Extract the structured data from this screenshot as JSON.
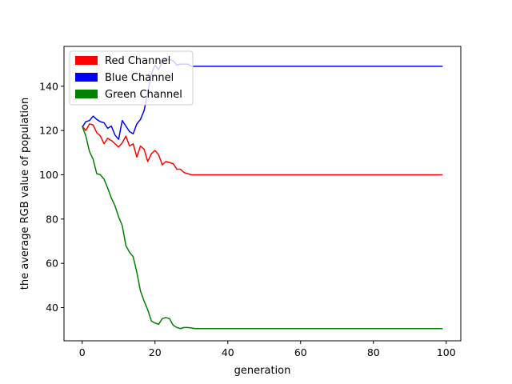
{
  "chart_data": {
    "type": "line",
    "title": "",
    "xlabel": "generation",
    "ylabel": "the average RGB value of population",
    "xlim": [
      -5,
      104
    ],
    "ylim": [
      25,
      158
    ],
    "xticks": [
      0,
      20,
      40,
      60,
      80,
      100
    ],
    "yticks": [
      40,
      60,
      80,
      100,
      120,
      140
    ],
    "grid": false,
    "legend": {
      "placement": "top-left"
    },
    "series": [
      {
        "name": "Red Channel",
        "color": "#ff0000",
        "x": [
          0,
          1,
          2,
          3,
          4,
          5,
          6,
          7,
          8,
          9,
          10,
          11,
          12,
          13,
          14,
          15,
          16,
          17,
          18,
          19,
          20,
          21,
          22,
          23,
          24,
          25,
          26,
          27,
          28,
          29,
          30,
          31,
          40,
          50,
          60,
          70,
          80,
          90,
          99
        ],
        "y": [
          122,
          120,
          123,
          122.5,
          119,
          117.5,
          114,
          116.5,
          115.5,
          114,
          112.5,
          114.5,
          117.5,
          113,
          114,
          108,
          113,
          111.5,
          106,
          109.5,
          111,
          109,
          104.5,
          106,
          105.5,
          105,
          102.5,
          102.5,
          101,
          100.5,
          100,
          100,
          100,
          100,
          100,
          100,
          100,
          100,
          100
        ]
      },
      {
        "name": "Blue Channel",
        "color": "#0000ff",
        "x": [
          0,
          1,
          2,
          3,
          4,
          5,
          6,
          7,
          8,
          9,
          10,
          11,
          12,
          13,
          14,
          15,
          16,
          17,
          18,
          19,
          20,
          21,
          22,
          23,
          24,
          25,
          26,
          27,
          28,
          29,
          30,
          31,
          40,
          50,
          60,
          70,
          80,
          90,
          99
        ],
        "y": [
          121.5,
          124,
          124.5,
          126.5,
          125,
          124,
          123.5,
          121,
          122,
          118,
          116,
          124.5,
          122,
          119.5,
          118.5,
          123,
          125,
          129,
          137,
          145.5,
          149.5,
          147.5,
          151,
          152.5,
          152,
          151.5,
          149.5,
          150,
          150,
          150,
          149,
          149,
          149,
          149,
          149,
          149,
          149,
          149,
          149
        ]
      },
      {
        "name": "Green Channel",
        "color": "#008000",
        "x": [
          0,
          1,
          2,
          3,
          4,
          5,
          6,
          7,
          8,
          9,
          10,
          11,
          12,
          13,
          14,
          15,
          16,
          17,
          18,
          19,
          20,
          21,
          22,
          23,
          24,
          25,
          26,
          27,
          28,
          29,
          30,
          31,
          40,
          50,
          60,
          70,
          80,
          90,
          99
        ],
        "y": [
          122,
          117.5,
          110.5,
          107,
          100.5,
          100,
          98,
          94,
          89.5,
          86,
          81,
          77,
          68,
          65,
          63,
          56,
          47.5,
          43,
          39,
          34,
          33,
          32.5,
          35,
          35.5,
          35,
          32,
          31,
          30.5,
          31,
          31,
          30.8,
          30.5,
          30.5,
          30.5,
          30.5,
          30.5,
          30.5,
          30.5,
          30.5
        ]
      }
    ]
  }
}
